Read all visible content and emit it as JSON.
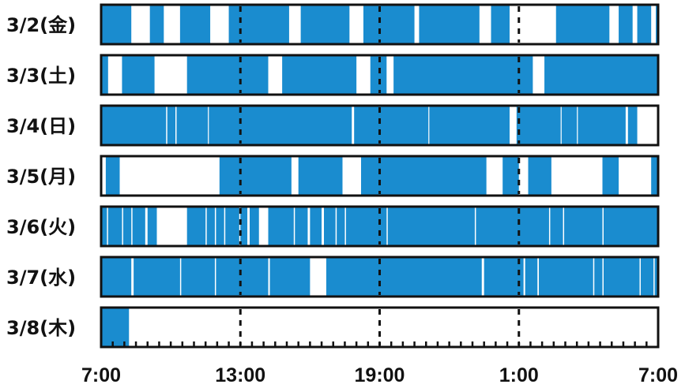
{
  "chart_data": {
    "type": "timeline",
    "title": "",
    "xlabel": "",
    "ylabel": "",
    "x_range_hours": [
      0,
      24
    ],
    "x_ticks": [
      {
        "offset_hours": 0,
        "label": "7:00"
      },
      {
        "offset_hours": 6,
        "label": "13:00"
      },
      {
        "offset_hours": 12,
        "label": "19:00"
      },
      {
        "offset_hours": 18,
        "label": "1:00"
      },
      {
        "offset_hours": 24,
        "label": "7:00"
      }
    ],
    "dashed_gridlines_at_hours": [
      6,
      12,
      18
    ],
    "minor_tick_interval_hours": 0.5,
    "filled_color": "#1a8ccf",
    "empty_color": "#ffffff",
    "rows": [
      {
        "label": "3/2(金)",
        "segments": [
          [
            0,
            1.3
          ],
          [
            2.1,
            2.7
          ],
          [
            3.4,
            4.7
          ],
          [
            5.5,
            8.1
          ],
          [
            8.6,
            10.7
          ],
          [
            11.3,
            13.5
          ],
          [
            13.7,
            16.3
          ],
          [
            16.8,
            17.6
          ],
          [
            19.6,
            21.9
          ],
          [
            22.3,
            22.9
          ],
          [
            23.1,
            23.7
          ],
          [
            23.9,
            24
          ]
        ]
      },
      {
        "label": "3/3(土)",
        "segments": [
          [
            0,
            0.3
          ],
          [
            0.9,
            2.3
          ],
          [
            3.7,
            7.2
          ],
          [
            7.8,
            11.0
          ],
          [
            11.6,
            12.3
          ],
          [
            12.6,
            18.6
          ],
          [
            19.1,
            24
          ]
        ]
      },
      {
        "label": "3/4(日)",
        "segments": [
          [
            0,
            24
          ]
        ],
        "gaps": [
          [
            2.8,
            2.85
          ],
          [
            3.2,
            3.25
          ],
          [
            4.6,
            4.63
          ],
          [
            10.8,
            10.9
          ],
          [
            14.1,
            14.14
          ],
          [
            17.6,
            17.9
          ],
          [
            19.8,
            19.84
          ],
          [
            20.5,
            20.53
          ],
          [
            22.6,
            22.7
          ],
          [
            23.1,
            24
          ]
        ]
      },
      {
        "label": "3/5(月)",
        "segments": [
          [
            0.2,
            0.8
          ],
          [
            5.1,
            8.2
          ],
          [
            8.5,
            10.4
          ],
          [
            11.2,
            16.6
          ],
          [
            17.3,
            18.0
          ],
          [
            18.4,
            19.4
          ],
          [
            21.6,
            22.3
          ],
          [
            23.7,
            24
          ]
        ]
      },
      {
        "label": "3/6(火)",
        "segments": [
          [
            0,
            24
          ]
        ],
        "gaps": [
          [
            0.25,
            0.3
          ],
          [
            0.9,
            0.95
          ],
          [
            1.3,
            1.35
          ],
          [
            1.9,
            2.0
          ],
          [
            2.4,
            3.7
          ],
          [
            4.5,
            4.55
          ],
          [
            4.9,
            4.95
          ],
          [
            5.3,
            5.35
          ],
          [
            5.95,
            6.0
          ],
          [
            6.3,
            6.4
          ],
          [
            6.8,
            7.2
          ],
          [
            8.3,
            8.35
          ],
          [
            8.9,
            9.0
          ],
          [
            9.5,
            9.6
          ],
          [
            10.1,
            10.15
          ],
          [
            10.5,
            10.55
          ],
          [
            12.3,
            12.35
          ],
          [
            16.1,
            16.15
          ],
          [
            19.3,
            19.35
          ],
          [
            19.9,
            19.95
          ],
          [
            21.6,
            21.65
          ]
        ]
      },
      {
        "label": "3/7(水)",
        "segments": [
          [
            0,
            24
          ]
        ],
        "gaps": [
          [
            1.3,
            1.4
          ],
          [
            3.4,
            3.45
          ],
          [
            4.9,
            4.95
          ],
          [
            7.2,
            7.27
          ],
          [
            9.0,
            9.7
          ],
          [
            16.4,
            16.5
          ],
          [
            18.2,
            18.27
          ],
          [
            18.8,
            18.86
          ],
          [
            21.2,
            21.25
          ],
          [
            21.6,
            21.65
          ],
          [
            23.2,
            23.25
          ],
          [
            23.8,
            23.85
          ]
        ]
      },
      {
        "label": "3/8(木)",
        "segments": [
          [
            0,
            1.2
          ]
        ]
      }
    ]
  }
}
